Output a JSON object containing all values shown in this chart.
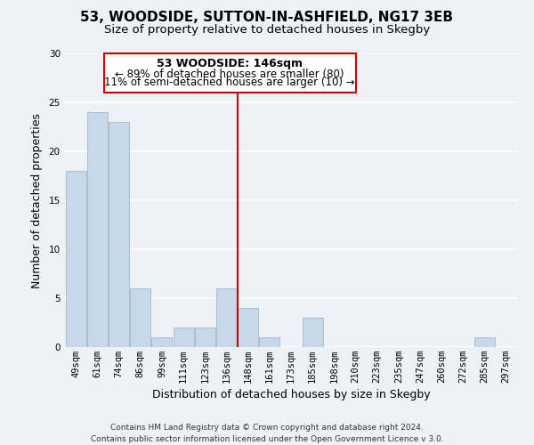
{
  "title": "53, WOODSIDE, SUTTON-IN-ASHFIELD, NG17 3EB",
  "subtitle": "Size of property relative to detached houses in Skegby",
  "xlabel": "Distribution of detached houses by size in Skegby",
  "ylabel": "Number of detached properties",
  "bar_color": "#c8d8e8",
  "bar_edge_color": "#aabfce",
  "bin_labels": [
    "49sqm",
    "61sqm",
    "74sqm",
    "86sqm",
    "99sqm",
    "111sqm",
    "123sqm",
    "136sqm",
    "148sqm",
    "161sqm",
    "173sqm",
    "185sqm",
    "198sqm",
    "210sqm",
    "223sqm",
    "235sqm",
    "247sqm",
    "260sqm",
    "272sqm",
    "285sqm",
    "297sqm"
  ],
  "bar_heights": [
    18,
    24,
    23,
    6,
    1,
    2,
    2,
    6,
    4,
    1,
    0,
    3,
    0,
    0,
    0,
    0,
    0,
    0,
    0,
    1,
    0
  ],
  "ylim": [
    0,
    30
  ],
  "yticks": [
    0,
    5,
    10,
    15,
    20,
    25,
    30
  ],
  "reference_line_bin_index": 8,
  "reference_line_color": "#cc0000",
  "annotation_title": "53 WOODSIDE: 146sqm",
  "annotation_line1": "← 89% of detached houses are smaller (80)",
  "annotation_line2": "11% of semi-detached houses are larger (10) →",
  "annotation_box_color": "#ffffff",
  "annotation_box_edge_color": "#cc0000",
  "footer_line1": "Contains HM Land Registry data © Crown copyright and database right 2024.",
  "footer_line2": "Contains public sector information licensed under the Open Government Licence v 3.0.",
  "background_color": "#eef2f6",
  "grid_color": "#ffffff",
  "title_fontsize": 11,
  "subtitle_fontsize": 9.5,
  "axis_label_fontsize": 9,
  "tick_fontsize": 7.5,
  "footer_fontsize": 6.5,
  "annotation_title_fontsize": 9,
  "annotation_text_fontsize": 8.5
}
